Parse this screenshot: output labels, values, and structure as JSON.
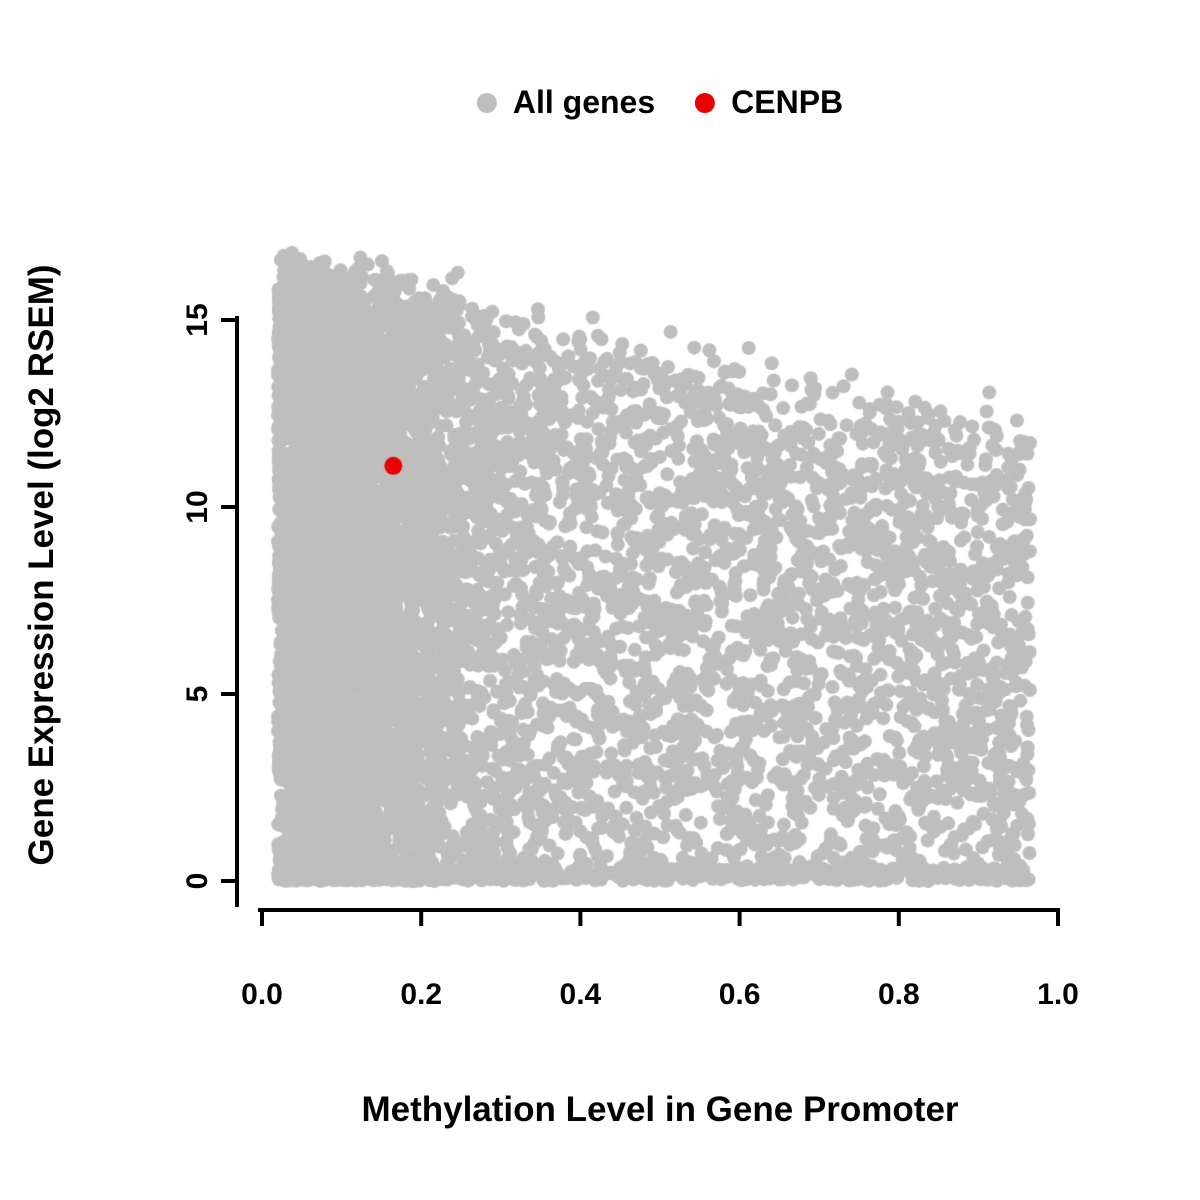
{
  "chart_data": {
    "type": "scatter",
    "title": "",
    "xlabel": "Methylation Level in Gene Promoter",
    "ylabel": "Gene Expression Level (log2 RSEM)",
    "xlim": [
      0.0,
      1.0
    ],
    "ylim": [
      0,
      15
    ],
    "grid": false,
    "legend_position": "top-center",
    "x_ticks": [
      {
        "value": 0.0,
        "label": "0.0"
      },
      {
        "value": 0.2,
        "label": "0.2"
      },
      {
        "value": 0.4,
        "label": "0.4"
      },
      {
        "value": 0.6,
        "label": "0.6"
      },
      {
        "value": 0.8,
        "label": "0.8"
      },
      {
        "value": 1.0,
        "label": "1.0"
      }
    ],
    "y_ticks": [
      {
        "value": 0,
        "label": "0"
      },
      {
        "value": 5,
        "label": "5"
      },
      {
        "value": 10,
        "label": "10"
      },
      {
        "value": 15,
        "label": "15"
      }
    ],
    "legend": [
      {
        "label": "All genes",
        "color": "#bebebe"
      },
      {
        "label": "CENPB",
        "color": "#ee0000"
      }
    ],
    "colors": {
      "all_genes": "#bebebe",
      "highlight": "#ee0000",
      "axis": "#000000"
    },
    "series": [
      {
        "name": "All genes",
        "color": "#bebebe",
        "point_radius_px": 7,
        "n_points": 9000,
        "generator": {
          "seed": 42,
          "x_min": 0.02,
          "x_max": 0.965,
          "x_halfnormal_frac": 0.5,
          "x_halfnormal_sd": 0.13,
          "x_uniform_power": 1.1,
          "envelope_intercept": 16.6,
          "envelope_slope": -5.0,
          "envelope_noise_sd": 0.4,
          "y_power": 0.9,
          "bottom_strip_frac": 0.08,
          "bottom_strip_max_y": 0.35,
          "y_max_clip": 16.8
        }
      },
      {
        "name": "CENPB",
        "color": "#ee0000",
        "point_radius_px": 9,
        "points": [
          {
            "x": 0.165,
            "y": 11.1
          }
        ]
      }
    ]
  }
}
